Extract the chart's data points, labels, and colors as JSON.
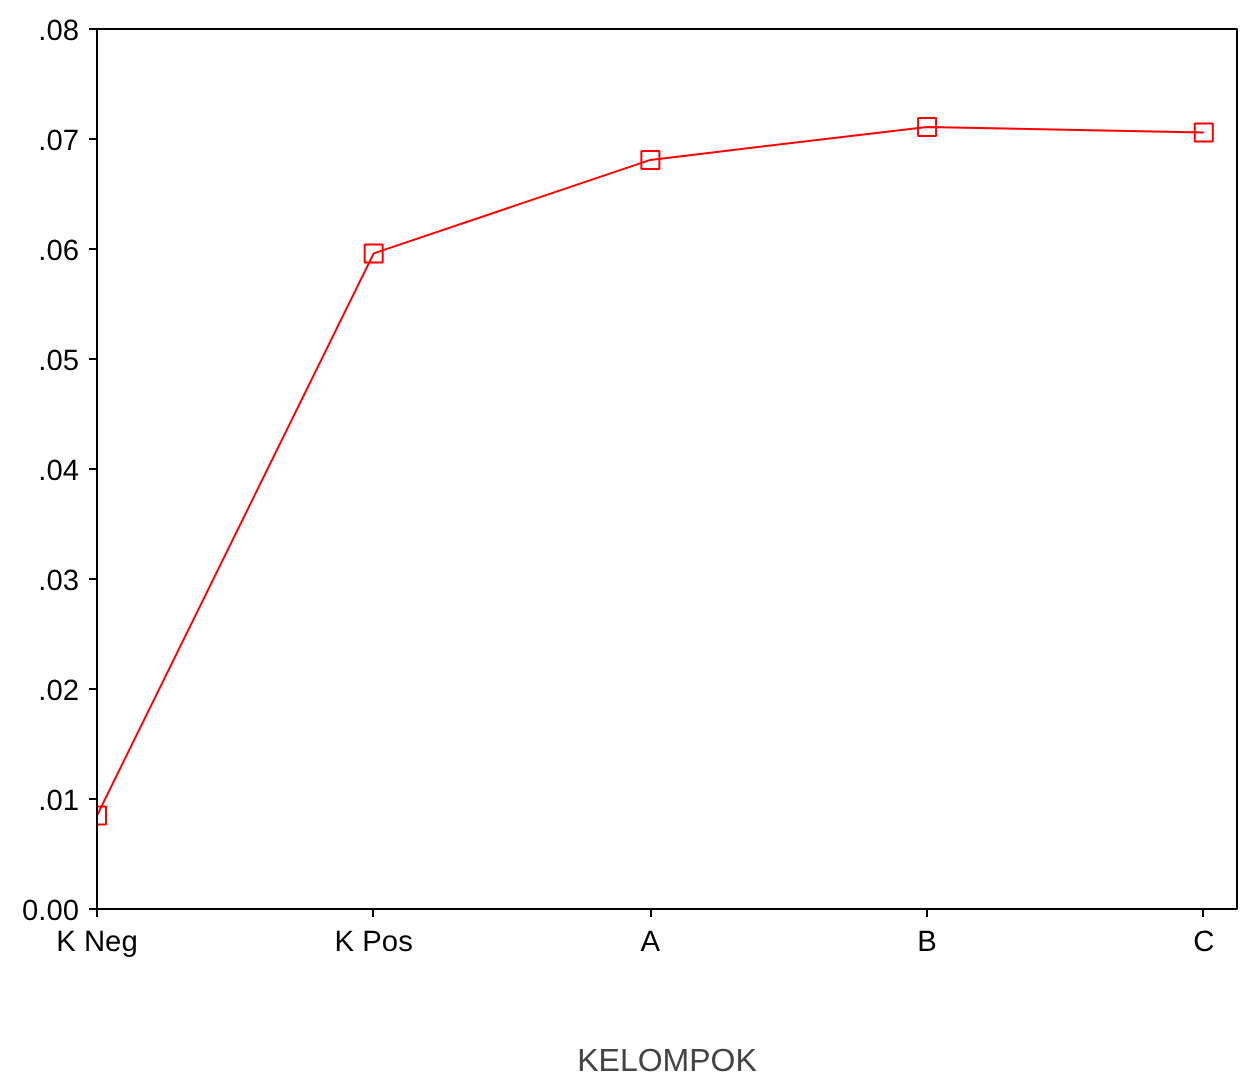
{
  "chart_data": {
    "type": "line",
    "xlabel": "KELOMPOK",
    "categories": [
      "K Neg",
      "K Pos",
      "A",
      "B",
      "C"
    ],
    "series": [
      {
        "color": "#ff0000",
        "values": [
          0.0085,
          0.0596,
          0.0681,
          0.0711,
          0.0706
        ]
      }
    ],
    "ylim": [
      0,
      0.08
    ],
    "yticks": [
      {
        "value": 0,
        "label": "0.00"
      },
      {
        "value": 0.01,
        "label": ".01"
      },
      {
        "value": 0.02,
        "label": ".02"
      },
      {
        "value": 0.03,
        "label": ".03"
      },
      {
        "value": 0.04,
        "label": ".04"
      },
      {
        "value": 0.05,
        "label": ".05"
      },
      {
        "value": 0.06,
        "label": ".06"
      },
      {
        "value": 0.07,
        "label": ".07"
      },
      {
        "value": 0.08,
        "label": ".08"
      }
    ],
    "marker": "square",
    "line_style": "solid"
  }
}
